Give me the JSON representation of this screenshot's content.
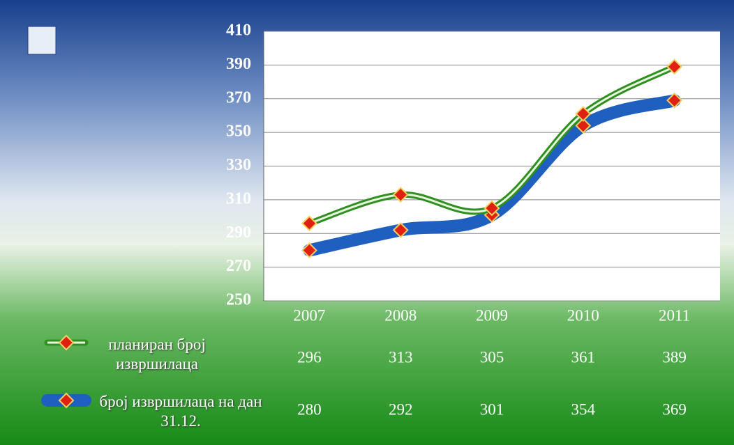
{
  "chart_data": {
    "type": "line",
    "categories": [
      "2007",
      "2008",
      "2009",
      "2010",
      "2011"
    ],
    "series": [
      {
        "name": "планиран број извршилаца",
        "color": "#2f8f1f",
        "values": [
          296,
          313,
          305,
          361,
          389
        ]
      },
      {
        "name": "број извршилаца на дан 31.12.",
        "color": "#1f5fbf",
        "values": [
          280,
          292,
          301,
          354,
          369
        ]
      }
    ],
    "ylim": [
      250,
      410
    ],
    "yticks": [
      250,
      270,
      290,
      310,
      330,
      350,
      370,
      390,
      410
    ],
    "grid": true,
    "data_table": true
  }
}
